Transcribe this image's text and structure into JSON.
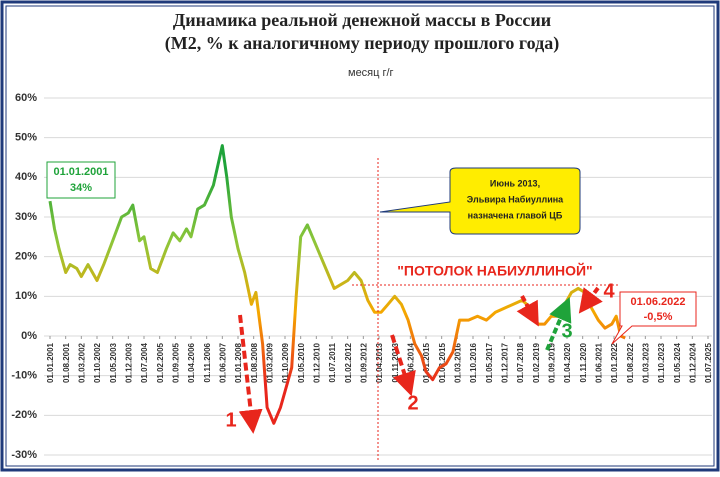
{
  "chart_data": {
    "type": "line",
    "title": "Динамика реальной денежной массы в России",
    "subtitle": "(М2, % к аналогичному периоду прошлого года)",
    "ylim": [
      -30,
      60
    ],
    "yticks": [
      {
        "value": -30,
        "label": "-30%"
      },
      {
        "value": -20,
        "label": "-20%"
      },
      {
        "value": -10,
        "label": "-10%"
      },
      {
        "value": 0,
        "label": "0%"
      },
      {
        "value": 10,
        "label": "10%"
      },
      {
        "value": 20,
        "label": "20%"
      },
      {
        "value": 30,
        "label": "30%"
      },
      {
        "value": 40,
        "label": "40%"
      },
      {
        "value": 50,
        "label": "50%"
      },
      {
        "value": 60,
        "label": "60%"
      }
    ],
    "grid": true,
    "xticks": [
      "01.01.2001",
      "01.08.2001",
      "01.03.2002",
      "01.10.2002",
      "01.05.2003",
      "01.12.2003",
      "01.07.2004",
      "01.02.2005",
      "01.09.2005",
      "01.04.2006",
      "01.11.2006",
      "01.06.2007",
      "01.01.2008",
      "01.08.2008",
      "01.03.2009",
      "01.10.2009",
      "01.05.2010",
      "01.12.2010",
      "01.07.2011",
      "01.02.2012",
      "01.09.2012",
      "01.04.2013",
      "01.11.2013",
      "01.06.2014",
      "01.01.2015",
      "01.08.2015",
      "01.03.2016",
      "01.10.2016",
      "01.05.2017",
      "01.12.2017",
      "01.07.2018",
      "01.02.2019",
      "01.09.2019",
      "01.04.2020",
      "01.11.2020",
      "01.06.2021",
      "01.01.2022",
      "01.08.2022",
      "01.03.2023",
      "01.10.2023",
      "01.05.2024",
      "01.12.2024",
      "01.07.2025"
    ],
    "x": [
      "01.01.2001",
      "01.03.2001",
      "01.05.2001",
      "01.08.2001",
      "01.10.2001",
      "01.01.2002",
      "01.03.2002",
      "01.06.2002",
      "01.10.2002",
      "01.01.2003",
      "01.05.2003",
      "01.09.2003",
      "01.12.2003",
      "01.02.2004",
      "01.05.2004",
      "01.07.2004",
      "01.10.2004",
      "01.01.2005",
      "01.05.2005",
      "01.08.2005",
      "01.11.2005",
      "01.02.2006",
      "01.04.2006",
      "01.07.2006",
      "01.10.2006",
      "01.02.2007",
      "01.06.2007",
      "01.08.2007",
      "01.10.2007",
      "01.01.2008",
      "01.04.2008",
      "01.07.2008",
      "01.09.2008",
      "01.12.2008",
      "01.02.2009",
      "01.05.2009",
      "01.08.2009",
      "01.10.2009",
      "01.01.2010",
      "01.03.2010",
      "01.05.2010",
      "01.08.2010",
      "01.11.2010",
      "01.02.2011",
      "01.05.2011",
      "01.08.2011",
      "01.11.2011",
      "01.02.2012",
      "01.05.2012",
      "01.08.2012",
      "01.11.2012",
      "01.02.2013",
      "01.05.2013",
      "01.08.2013",
      "01.11.2013",
      "01.02.2014",
      "01.05.2014",
      "01.08.2014",
      "01.11.2014",
      "01.01.2015",
      "01.04.2015",
      "01.07.2015",
      "01.10.2015",
      "01.01.2016",
      "01.04.2016",
      "01.08.2016",
      "01.12.2016",
      "01.04.2017",
      "01.08.2017",
      "01.12.2017",
      "01.04.2018",
      "01.08.2018",
      "01.12.2018",
      "01.03.2019",
      "01.06.2019",
      "01.09.2019",
      "01.12.2019",
      "01.03.2020",
      "01.06.2020",
      "01.09.2020",
      "01.12.2020",
      "01.03.2021",
      "01.06.2021",
      "01.09.2021",
      "01.12.2021",
      "01.02.2022",
      "01.04.2022",
      "01.06.2022"
    ],
    "series": [
      {
        "name": "месяц г/г",
        "colors": [
          "#1fa33a",
          "#1fa33a",
          "#8cc63a",
          "#f5a800",
          "#e8261c",
          "#e8261c"
        ],
        "values": [
          34,
          27,
          22,
          16,
          18,
          17,
          15,
          18,
          14,
          18,
          24,
          30,
          31,
          33,
          24,
          25,
          17,
          16,
          22,
          26,
          24,
          27,
          25,
          32,
          33,
          38,
          48,
          40,
          30,
          22,
          16,
          8,
          11,
          -2,
          -18,
          -22,
          -18,
          -14,
          -8,
          10,
          25,
          28,
          24,
          20,
          16,
          12,
          13,
          14,
          16,
          14,
          9,
          6,
          6,
          8,
          10,
          8,
          4,
          -2,
          -5,
          -9,
          -11,
          -8,
          -7,
          -4,
          4,
          4,
          5,
          4,
          6,
          7,
          8,
          9,
          7,
          3,
          3,
          5,
          5,
          8,
          11,
          12,
          11,
          7,
          4,
          2,
          3,
          5,
          0,
          -0.5
        ]
      }
    ],
    "annotations": {
      "start": [
        "01.01.2001",
        "34%"
      ],
      "appointment": [
        "Июнь 2013,",
        "Эльвира Набиуллина",
        "назначена главой ЦБ"
      ],
      "ceiling": "\"ПОТОЛОК НАБИУЛЛИНОЙ\"",
      "markers": [
        "1",
        "2",
        "3",
        "4"
      ],
      "end": [
        "01.06.2022",
        "-0,5%"
      ]
    }
  }
}
